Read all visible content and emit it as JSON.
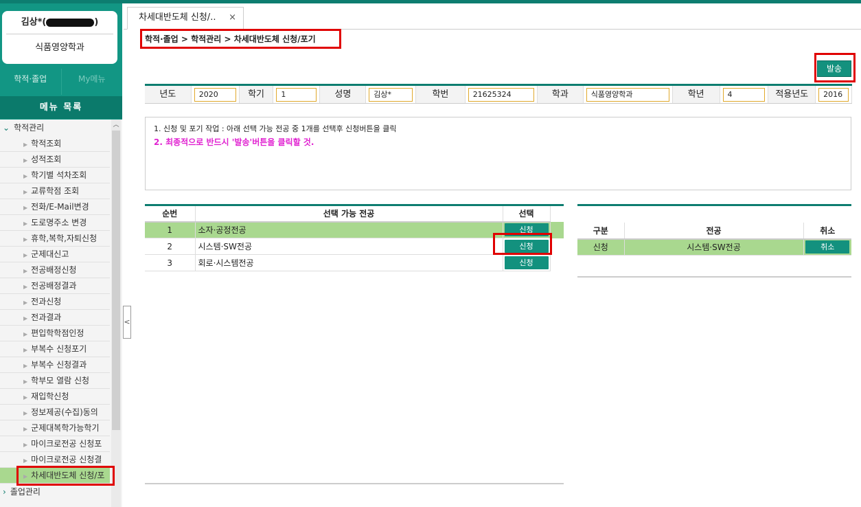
{
  "user": {
    "name": "김상*(",
    "name_suffix": ")",
    "department": "식품영양학과"
  },
  "nav_tabs": [
    "학적·졸업",
    "My메뉴"
  ],
  "menu_title": "메뉴 목록",
  "menu_group": "학적관리",
  "menu_items": [
    "학적조회",
    "성적조회",
    "학기별 석차조회",
    "교류학점 조회",
    "전화/E-Mail변경",
    "도로명주소 변경",
    "휴학,복학,자퇴신청",
    "군제대신고",
    "전공배정신청",
    "전공배정결과",
    "전과신청",
    "전과결과",
    "편입학학점인정",
    "부복수 신청포기",
    "부복수 신청결과",
    "학부모 열람 신청",
    "재입학신청",
    "정보제공(수집)동의",
    "군제대복학가능학기",
    "마이크로전공 신청포",
    "마이크로전공 신청결",
    "차세대반도체 신청/포"
  ],
  "next_group": "졸업관리",
  "tab": {
    "label": "차세대반도체 신청/..",
    "close": "×"
  },
  "breadcrumb": "학적·졸업 > 학적관리 > 차세대반도체 신청/포기",
  "send_button": "발송",
  "info": [
    {
      "label": "년도",
      "value": "2020"
    },
    {
      "label": "학기",
      "value": "1"
    },
    {
      "label": "성명",
      "value": "김상*"
    },
    {
      "label": "학번",
      "value": "21625324"
    },
    {
      "label": "학과",
      "value": "식품영양학과"
    },
    {
      "label": "학년",
      "value": "4"
    },
    {
      "label": "적용년도",
      "value": "2016"
    }
  ],
  "notice": {
    "line1": "1. 신청 및 포기 작업 : 아래 선택 가능 전공 중 1개를 선택후 신청버튼을 클릭",
    "line2": "2. 최종적으로 반드시 '발송'버튼을 클릭할 것."
  },
  "majors_table": {
    "headers": [
      "순번",
      "선택 가능 전공",
      "선택"
    ],
    "rows": [
      {
        "no": "1",
        "major": "소자·공정전공",
        "action": "신청"
      },
      {
        "no": "2",
        "major": "시스템·SW전공",
        "action": "신청"
      },
      {
        "no": "3",
        "major": "회로·시스템전공",
        "action": "신청"
      }
    ]
  },
  "applied_table": {
    "headers": [
      "구분",
      "전공",
      "취소"
    ],
    "rows": [
      {
        "type": "신청",
        "major": "시스템·SW전공",
        "action": "취소"
      }
    ]
  },
  "colors": {
    "accent": "#13917e",
    "highlight": "#a9d88f",
    "notice": "#e020d0",
    "annotation": "#e00000"
  }
}
